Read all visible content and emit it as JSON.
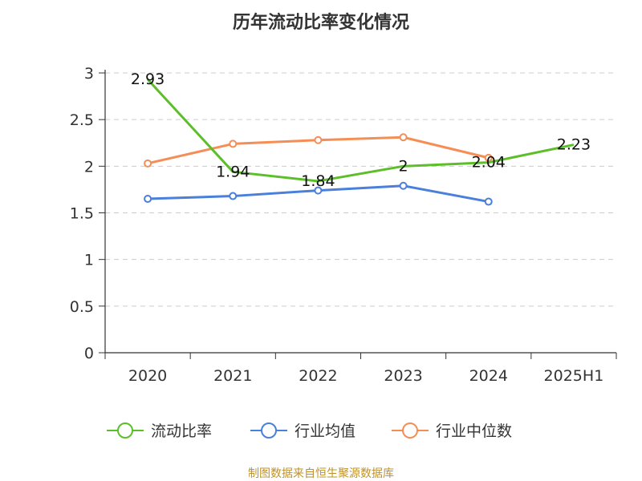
{
  "chart_data": {
    "type": "line",
    "title": "历年流动比率变化情况",
    "categories": [
      "2020",
      "2021",
      "2022",
      "2023",
      "2024",
      "2025H1"
    ],
    "ylim": [
      0,
      3
    ],
    "yticks": [
      "0",
      "0.5",
      "1",
      "1.5",
      "2",
      "2.5",
      "3"
    ],
    "grid": true,
    "legend_position": "bottom",
    "series": [
      {
        "name": "流动比率",
        "color": "#5cbf2a",
        "values": [
          2.93,
          1.94,
          1.84,
          2.0,
          2.04,
          2.23
        ],
        "labels": [
          "2.93",
          "1.94",
          "1.84",
          "2",
          "2.04",
          "2.23"
        ]
      },
      {
        "name": "行业均值",
        "color": "#4a7fdc",
        "values": [
          1.65,
          1.68,
          1.74,
          1.79,
          1.62,
          null
        ]
      },
      {
        "name": "行业中位数",
        "color": "#f58e55",
        "values": [
          2.03,
          2.24,
          2.28,
          2.31,
          2.09,
          null
        ]
      }
    ]
  },
  "source_text": "制图数据来自恒生聚源数据库"
}
